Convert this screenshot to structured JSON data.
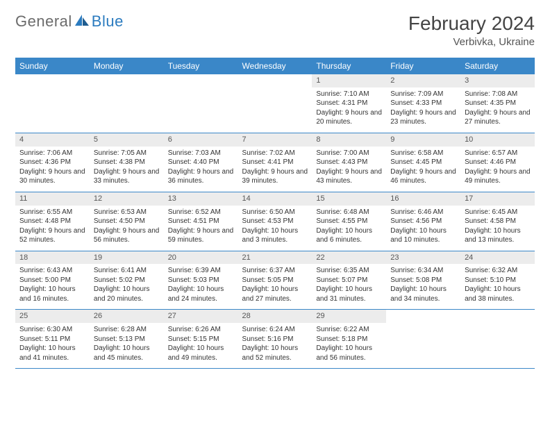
{
  "brand": {
    "left": "General",
    "right": "Blue"
  },
  "title": "February 2024",
  "location": "Verbivka, Ukraine",
  "theme": {
    "header_bg": "#3a87c8",
    "header_fg": "#ffffff",
    "daynum_bg": "#ececec",
    "border": "#3a87c8",
    "text": "#333333"
  },
  "weekdays": [
    "Sunday",
    "Monday",
    "Tuesday",
    "Wednesday",
    "Thursday",
    "Friday",
    "Saturday"
  ],
  "weeks": [
    [
      null,
      null,
      null,
      null,
      {
        "n": "1",
        "sr": "7:10 AM",
        "ss": "4:31 PM",
        "dl": "9 hours and 20 minutes."
      },
      {
        "n": "2",
        "sr": "7:09 AM",
        "ss": "4:33 PM",
        "dl": "9 hours and 23 minutes."
      },
      {
        "n": "3",
        "sr": "7:08 AM",
        "ss": "4:35 PM",
        "dl": "9 hours and 27 minutes."
      }
    ],
    [
      {
        "n": "4",
        "sr": "7:06 AM",
        "ss": "4:36 PM",
        "dl": "9 hours and 30 minutes."
      },
      {
        "n": "5",
        "sr": "7:05 AM",
        "ss": "4:38 PM",
        "dl": "9 hours and 33 minutes."
      },
      {
        "n": "6",
        "sr": "7:03 AM",
        "ss": "4:40 PM",
        "dl": "9 hours and 36 minutes."
      },
      {
        "n": "7",
        "sr": "7:02 AM",
        "ss": "4:41 PM",
        "dl": "9 hours and 39 minutes."
      },
      {
        "n": "8",
        "sr": "7:00 AM",
        "ss": "4:43 PM",
        "dl": "9 hours and 43 minutes."
      },
      {
        "n": "9",
        "sr": "6:58 AM",
        "ss": "4:45 PM",
        "dl": "9 hours and 46 minutes."
      },
      {
        "n": "10",
        "sr": "6:57 AM",
        "ss": "4:46 PM",
        "dl": "9 hours and 49 minutes."
      }
    ],
    [
      {
        "n": "11",
        "sr": "6:55 AM",
        "ss": "4:48 PM",
        "dl": "9 hours and 52 minutes."
      },
      {
        "n": "12",
        "sr": "6:53 AM",
        "ss": "4:50 PM",
        "dl": "9 hours and 56 minutes."
      },
      {
        "n": "13",
        "sr": "6:52 AM",
        "ss": "4:51 PM",
        "dl": "9 hours and 59 minutes."
      },
      {
        "n": "14",
        "sr": "6:50 AM",
        "ss": "4:53 PM",
        "dl": "10 hours and 3 minutes."
      },
      {
        "n": "15",
        "sr": "6:48 AM",
        "ss": "4:55 PM",
        "dl": "10 hours and 6 minutes."
      },
      {
        "n": "16",
        "sr": "6:46 AM",
        "ss": "4:56 PM",
        "dl": "10 hours and 10 minutes."
      },
      {
        "n": "17",
        "sr": "6:45 AM",
        "ss": "4:58 PM",
        "dl": "10 hours and 13 minutes."
      }
    ],
    [
      {
        "n": "18",
        "sr": "6:43 AM",
        "ss": "5:00 PM",
        "dl": "10 hours and 16 minutes."
      },
      {
        "n": "19",
        "sr": "6:41 AM",
        "ss": "5:02 PM",
        "dl": "10 hours and 20 minutes."
      },
      {
        "n": "20",
        "sr": "6:39 AM",
        "ss": "5:03 PM",
        "dl": "10 hours and 24 minutes."
      },
      {
        "n": "21",
        "sr": "6:37 AM",
        "ss": "5:05 PM",
        "dl": "10 hours and 27 minutes."
      },
      {
        "n": "22",
        "sr": "6:35 AM",
        "ss": "5:07 PM",
        "dl": "10 hours and 31 minutes."
      },
      {
        "n": "23",
        "sr": "6:34 AM",
        "ss": "5:08 PM",
        "dl": "10 hours and 34 minutes."
      },
      {
        "n": "24",
        "sr": "6:32 AM",
        "ss": "5:10 PM",
        "dl": "10 hours and 38 minutes."
      }
    ],
    [
      {
        "n": "25",
        "sr": "6:30 AM",
        "ss": "5:11 PM",
        "dl": "10 hours and 41 minutes."
      },
      {
        "n": "26",
        "sr": "6:28 AM",
        "ss": "5:13 PM",
        "dl": "10 hours and 45 minutes."
      },
      {
        "n": "27",
        "sr": "6:26 AM",
        "ss": "5:15 PM",
        "dl": "10 hours and 49 minutes."
      },
      {
        "n": "28",
        "sr": "6:24 AM",
        "ss": "5:16 PM",
        "dl": "10 hours and 52 minutes."
      },
      {
        "n": "29",
        "sr": "6:22 AM",
        "ss": "5:18 PM",
        "dl": "10 hours and 56 minutes."
      },
      null,
      null
    ]
  ],
  "labels": {
    "sunrise": "Sunrise:",
    "sunset": "Sunset:",
    "daylight": "Daylight:"
  }
}
